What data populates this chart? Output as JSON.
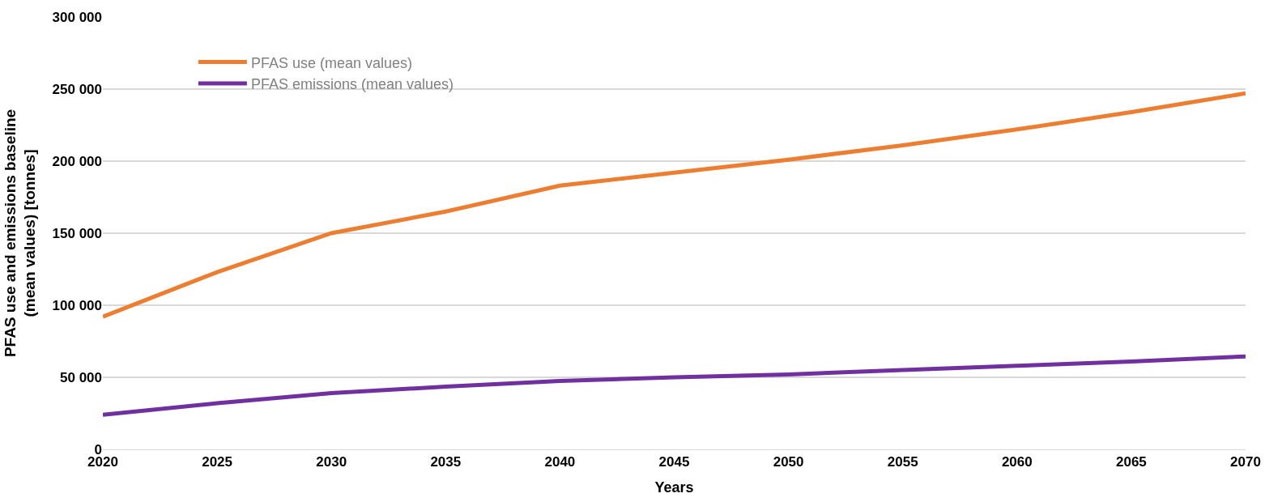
{
  "chart_data": {
    "type": "line",
    "xlabel": "Years",
    "ylabel": "PFAS use and emissions baseline\n(mean values) [tonnes]",
    "x": [
      2020,
      2025,
      2030,
      2035,
      2040,
      2045,
      2050,
      2055,
      2060,
      2065,
      2070
    ],
    "series": [
      {
        "name": "PFAS use (mean values)",
        "color": "#ed7d31",
        "values": [
          92000,
          123000,
          150000,
          165000,
          183000,
          192000,
          201000,
          211000,
          222000,
          234000,
          247000
        ]
      },
      {
        "name": "PFAS emissions (mean values)",
        "color": "#7030a0",
        "values": [
          24000,
          32000,
          39000,
          43500,
          47500,
          50000,
          52000,
          55000,
          58000,
          61000,
          64500
        ]
      }
    ],
    "xlim": [
      2020,
      2070
    ],
    "xticks": [
      2020,
      2025,
      2030,
      2035,
      2040,
      2045,
      2050,
      2055,
      2060,
      2065,
      2070
    ],
    "ylim": [
      0,
      300000
    ],
    "yticks": [
      {
        "value": 0,
        "label": "0"
      },
      {
        "value": 50000,
        "label": "50 000"
      },
      {
        "value": 100000,
        "label": "100 000"
      },
      {
        "value": 150000,
        "label": "150 000"
      },
      {
        "value": 200000,
        "label": "200 000"
      },
      {
        "value": 250000,
        "label": "250 000"
      },
      {
        "value": 300000,
        "label": "300 000"
      }
    ],
    "grid": "y",
    "legend": "top left",
    "marker": "none",
    "line_style": "solid"
  }
}
